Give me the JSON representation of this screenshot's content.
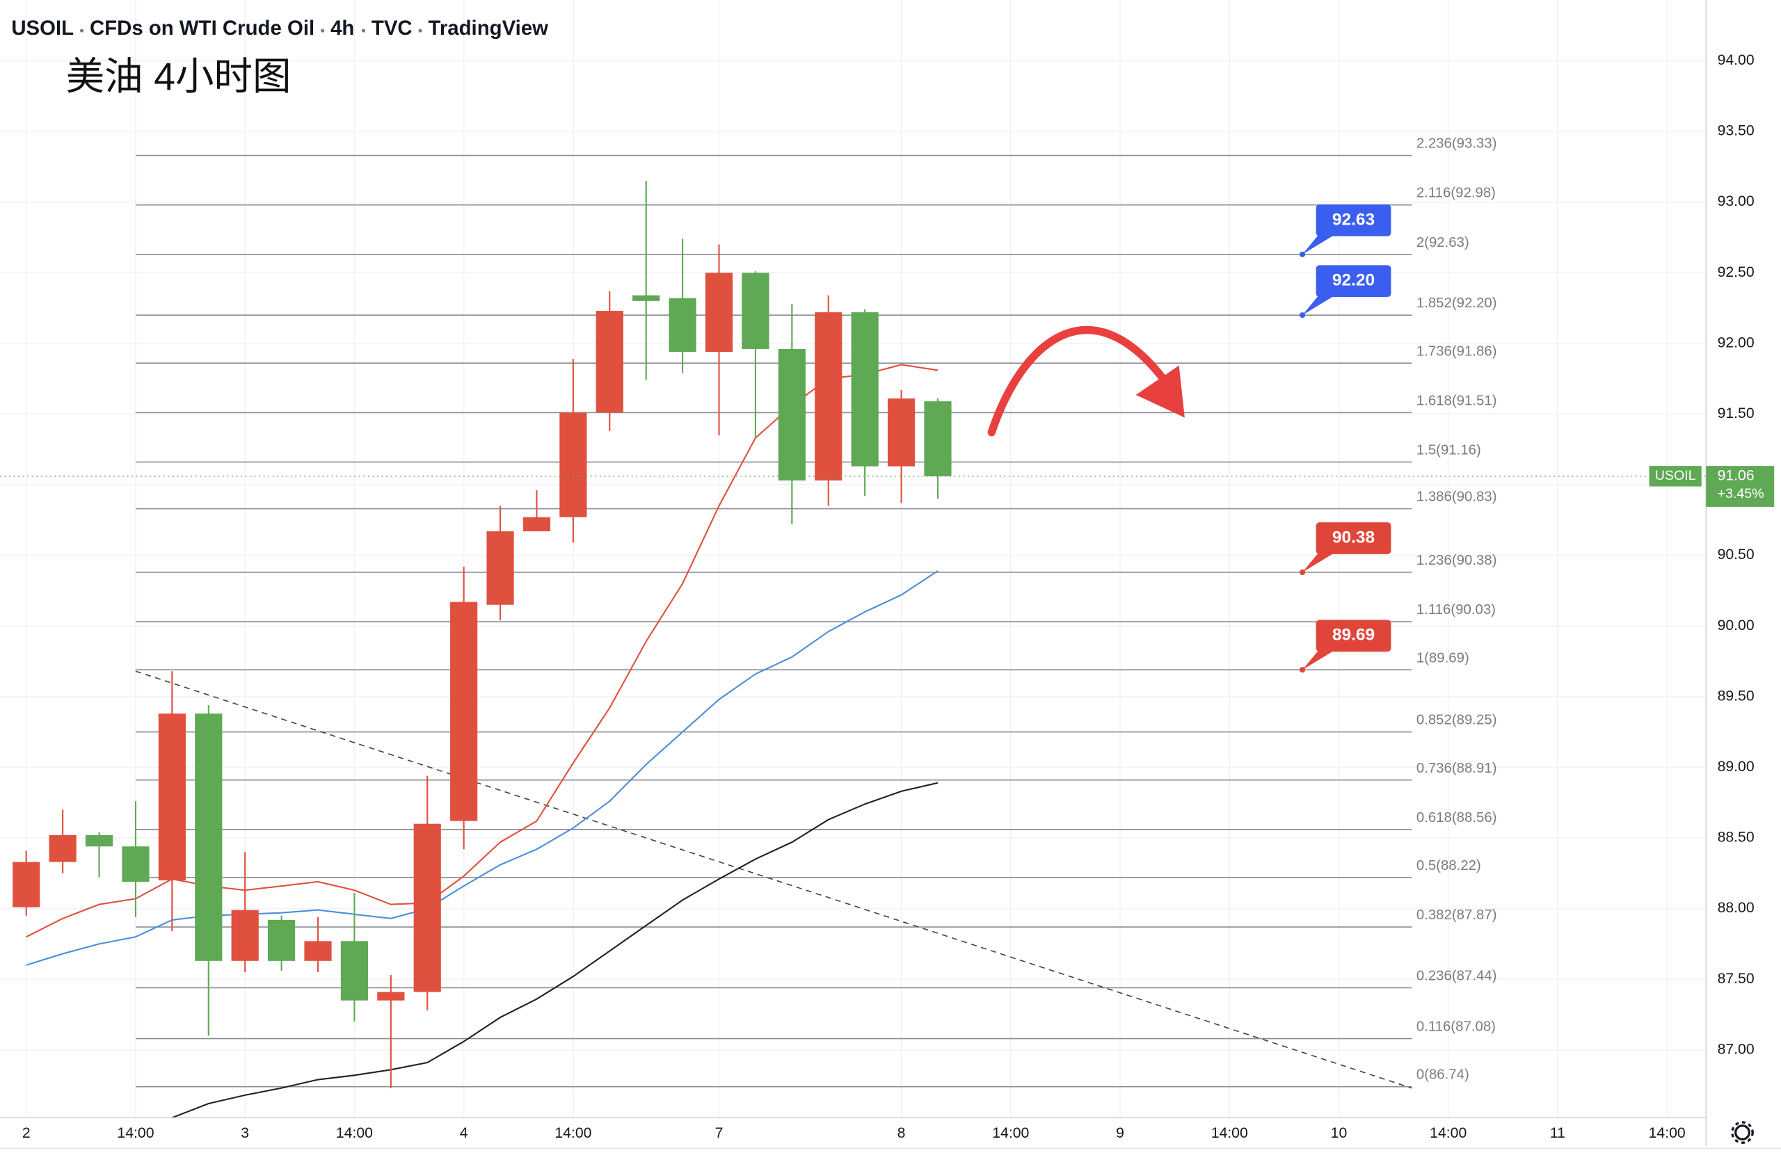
{
  "chart_data": {
    "type": "candlestick",
    "symbol": "USOIL",
    "description": "CFDs on WTI Crude Oil",
    "interval": "4h",
    "exchange": "TVC",
    "source": "TradingView",
    "annotation": "美油 4小时图",
    "up_color": "#e0503f",
    "down_color": "#5fa854",
    "x": [
      0,
      1,
      2,
      3,
      4,
      5,
      6,
      7,
      8,
      9,
      10,
      11,
      12,
      13,
      14,
      15,
      16,
      17,
      18,
      19,
      20,
      21,
      22,
      23,
      24,
      25
    ],
    "candles": [
      {
        "open": 88.01,
        "high": 88.41,
        "low": 87.95,
        "close": 88.33
      },
      {
        "open": 88.33,
        "high": 88.7,
        "low": 88.25,
        "close": 88.52
      },
      {
        "open": 88.52,
        "high": 88.54,
        "low": 88.22,
        "close": 88.44
      },
      {
        "open": 88.44,
        "high": 88.76,
        "low": 87.94,
        "close": 88.19
      },
      {
        "open": 88.2,
        "high": 89.68,
        "low": 87.84,
        "close": 89.38
      },
      {
        "open": 89.38,
        "high": 89.44,
        "low": 87.1,
        "close": 87.63
      },
      {
        "open": 87.63,
        "high": 88.4,
        "low": 87.55,
        "close": 87.99
      },
      {
        "open": 87.92,
        "high": 87.95,
        "low": 87.56,
        "close": 87.63
      },
      {
        "open": 87.63,
        "high": 87.94,
        "low": 87.55,
        "close": 87.77
      },
      {
        "open": 87.77,
        "high": 88.11,
        "low": 87.2,
        "close": 87.35
      },
      {
        "open": 87.35,
        "high": 87.53,
        "low": 86.73,
        "close": 87.41
      },
      {
        "open": 87.41,
        "high": 88.94,
        "low": 87.28,
        "close": 88.6
      },
      {
        "open": 88.62,
        "high": 90.42,
        "low": 88.42,
        "close": 90.17
      },
      {
        "open": 90.15,
        "high": 90.85,
        "low": 90.04,
        "close": 90.67
      },
      {
        "open": 90.67,
        "high": 90.96,
        "low": 90.67,
        "close": 90.77
      },
      {
        "open": 90.77,
        "high": 91.89,
        "low": 90.59,
        "close": 91.51
      },
      {
        "open": 91.51,
        "high": 92.37,
        "low": 91.38,
        "close": 92.23
      },
      {
        "open": 92.34,
        "high": 93.15,
        "low": 91.74,
        "close": 92.3
      },
      {
        "open": 92.32,
        "high": 92.74,
        "low": 91.79,
        "close": 91.94
      },
      {
        "open": 91.94,
        "high": 92.7,
        "low": 91.35,
        "close": 92.5
      },
      {
        "open": 92.5,
        "high": 92.51,
        "low": 91.33,
        "close": 91.96
      },
      {
        "open": 91.96,
        "high": 92.28,
        "low": 90.72,
        "close": 91.03
      },
      {
        "open": 91.03,
        "high": 92.34,
        "low": 90.85,
        "close": 92.22
      },
      {
        "open": 92.22,
        "high": 92.24,
        "low": 90.92,
        "close": 91.13
      },
      {
        "open": 91.13,
        "high": 91.67,
        "low": 90.87,
        "close": 91.61
      },
      {
        "open": 91.59,
        "high": 91.61,
        "low": 90.9,
        "close": 91.06
      }
    ],
    "lines": [
      {
        "color": "#e0503f",
        "values": [
          87.8,
          87.93,
          88.03,
          88.07,
          88.21,
          88.16,
          88.13,
          88.16,
          88.19,
          88.13,
          88.03,
          88.04,
          88.23,
          88.47,
          88.62,
          89.03,
          89.42,
          89.89,
          90.3,
          90.85,
          91.33,
          91.56,
          91.75,
          91.78,
          91.85,
          91.81
        ]
      },
      {
        "color": "#4a90d9",
        "values": [
          87.6,
          87.68,
          87.75,
          87.8,
          87.92,
          87.95,
          87.96,
          87.97,
          87.99,
          87.96,
          87.93,
          88.0,
          88.16,
          88.31,
          88.42,
          88.57,
          88.76,
          89.02,
          89.25,
          89.48,
          89.66,
          89.78,
          89.96,
          90.1,
          90.22,
          90.39
        ]
      },
      {
        "color": "#222222",
        "values": [
          null,
          null,
          null,
          null,
          86.52,
          86.62,
          86.68,
          86.73,
          86.79,
          86.82,
          86.86,
          86.91,
          87.06,
          87.23,
          87.36,
          87.52,
          87.7,
          87.88,
          88.06,
          88.21,
          88.35,
          88.47,
          88.63,
          88.74,
          88.83,
          88.89
        ]
      }
    ],
    "fib_levels": [
      {
        "value": 93.33,
        "label": "2.236(93.33)"
      },
      {
        "value": 92.98,
        "label": "2.116(92.98)"
      },
      {
        "value": 92.63,
        "label": "2(92.63)"
      },
      {
        "value": 92.2,
        "label": "1.852(92.20)"
      },
      {
        "value": 91.86,
        "label": "1.736(91.86)"
      },
      {
        "value": 91.51,
        "label": "1.618(91.51)"
      },
      {
        "value": 91.16,
        "label": "1.5(91.16)"
      },
      {
        "value": 90.83,
        "label": "1.386(90.83)"
      },
      {
        "value": 90.38,
        "label": "1.236(90.38)"
      },
      {
        "value": 90.03,
        "label": "1.116(90.03)"
      },
      {
        "value": 89.69,
        "label": "1(89.69)"
      },
      {
        "value": 89.25,
        "label": "0.852(89.25)"
      },
      {
        "value": 88.91,
        "label": "0.736(88.91)"
      },
      {
        "value": 88.56,
        "label": "0.618(88.56)"
      },
      {
        "value": 88.22,
        "label": "0.5(88.22)"
      },
      {
        "value": 87.87,
        "label": "0.382(87.87)"
      },
      {
        "value": 87.44,
        "label": "0.236(87.44)"
      },
      {
        "value": 87.08,
        "label": "0.116(87.08)"
      },
      {
        "value": 86.74,
        "label": "0(86.74)"
      }
    ],
    "price_tags": [
      {
        "value": 92.63,
        "label": "92.63",
        "color": "#3a5ff0"
      },
      {
        "value": 92.2,
        "label": "92.20",
        "color": "#3a5ff0"
      },
      {
        "value": 90.38,
        "label": "90.38",
        "color": "#e0453a"
      },
      {
        "value": 89.69,
        "label": "89.69",
        "color": "#e0453a"
      }
    ],
    "trendline": {
      "x": [
        3,
        38
      ],
      "values": [
        89.68,
        86.73
      ]
    },
    "last_price": {
      "value": 91.06,
      "label": "91.06",
      "change": "+3.45%",
      "color": "#5fa854"
    },
    "xlim": [
      -0.72,
      46.07
    ],
    "ylim": [
      86.52,
      94.43
    ],
    "xticks": [
      {
        "value": 0,
        "label": "2"
      },
      {
        "value": 3,
        "label": "14:00"
      },
      {
        "value": 6,
        "label": "3"
      },
      {
        "value": 9,
        "label": "14:00"
      },
      {
        "value": 12,
        "label": "4"
      },
      {
        "value": 15,
        "label": "14:00"
      },
      {
        "value": 19,
        "label": "7"
      },
      {
        "value": 24,
        "label": "8"
      },
      {
        "value": 27,
        "label": "14:00"
      },
      {
        "value": 30,
        "label": "9"
      },
      {
        "value": 33,
        "label": "14:00"
      },
      {
        "value": 36,
        "label": "10"
      },
      {
        "value": 39,
        "label": "14:00"
      },
      {
        "value": 42,
        "label": "11"
      },
      {
        "value": 45,
        "label": "14:00"
      }
    ],
    "yticks": [
      {
        "value": 87,
        "label": "87.00"
      },
      {
        "value": 87.5,
        "label": "87.50"
      },
      {
        "value": 88,
        "label": "88.00"
      },
      {
        "value": 88.5,
        "label": "88.50"
      },
      {
        "value": 89,
        "label": "89.00"
      },
      {
        "value": 89.5,
        "label": "89.50"
      },
      {
        "value": 90,
        "label": "90.00"
      },
      {
        "value": 90.5,
        "label": "90.50"
      },
      {
        "value": 91,
        "label": "91.00"
      },
      {
        "value": 91.5,
        "label": "91.50"
      },
      {
        "value": 92,
        "label": "92.00"
      },
      {
        "value": 92.5,
        "label": "92.50"
      },
      {
        "value": 93,
        "label": "93.00"
      },
      {
        "value": 93.5,
        "label": "93.50"
      },
      {
        "value": 94,
        "label": "94.00"
      }
    ],
    "grid": true
  }
}
